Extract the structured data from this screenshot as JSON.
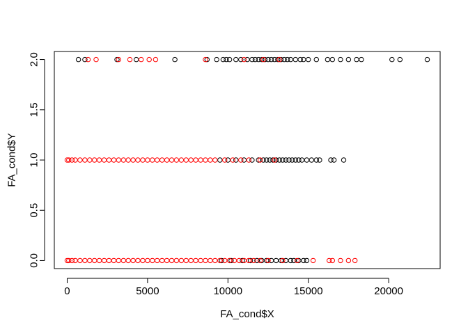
{
  "chart_data": {
    "type": "scatter",
    "title": "",
    "xlabel": "FA_cond$X",
    "ylabel": "FA_cond$Y",
    "xlim": [
      -800,
      23200
    ],
    "ylim": [
      -0.08,
      2.08
    ],
    "x_ticks": [
      0,
      5000,
      10000,
      15000,
      20000
    ],
    "x_tick_labels": [
      "0",
      "5000",
      "10000",
      "15000",
      "20000"
    ],
    "y_ticks": [
      0.0,
      0.5,
      1.0,
      1.5,
      2.0
    ],
    "y_tick_labels": [
      "0.0",
      "0.5",
      "1.0",
      "1.5",
      "2.0"
    ],
    "grid": false,
    "legend": "none",
    "marker": "open-circle",
    "colors": {
      "black_points": "#000000",
      "red_points": "#ff0000",
      "axes": "#000000"
    },
    "series": [
      {
        "color": "#000000",
        "points": [
          {
            "x": 700,
            "y": 2
          },
          {
            "x": 1100,
            "y": 2
          },
          {
            "x": 3100,
            "y": 2
          },
          {
            "x": 4300,
            "y": 2
          },
          {
            "x": 6700,
            "y": 2
          },
          {
            "x": 8700,
            "y": 2
          },
          {
            "x": 9300,
            "y": 2
          },
          {
            "x": 9700,
            "y": 2
          },
          {
            "x": 9900,
            "y": 2
          },
          {
            "x": 10100,
            "y": 2
          },
          {
            "x": 10500,
            "y": 2
          },
          {
            "x": 10800,
            "y": 2
          },
          {
            "x": 11200,
            "y": 2
          },
          {
            "x": 11500,
            "y": 2
          },
          {
            "x": 11700,
            "y": 2
          },
          {
            "x": 11900,
            "y": 2
          },
          {
            "x": 12100,
            "y": 2
          },
          {
            "x": 12300,
            "y": 2
          },
          {
            "x": 12500,
            "y": 2
          },
          {
            "x": 12700,
            "y": 2
          },
          {
            "x": 12900,
            "y": 2
          },
          {
            "x": 13100,
            "y": 2
          },
          {
            "x": 13300,
            "y": 2
          },
          {
            "x": 13500,
            "y": 2
          },
          {
            "x": 13700,
            "y": 2
          },
          {
            "x": 13900,
            "y": 2
          },
          {
            "x": 14200,
            "y": 2
          },
          {
            "x": 14500,
            "y": 2
          },
          {
            "x": 14700,
            "y": 2
          },
          {
            "x": 15000,
            "y": 2
          },
          {
            "x": 15500,
            "y": 2
          },
          {
            "x": 16200,
            "y": 2
          },
          {
            "x": 16500,
            "y": 2
          },
          {
            "x": 17000,
            "y": 2
          },
          {
            "x": 17500,
            "y": 2
          },
          {
            "x": 18000,
            "y": 2
          },
          {
            "x": 18300,
            "y": 2
          },
          {
            "x": 20200,
            "y": 2
          },
          {
            "x": 20700,
            "y": 2
          },
          {
            "x": 22400,
            "y": 2
          },
          {
            "x": 9500,
            "y": 1
          },
          {
            "x": 10000,
            "y": 1
          },
          {
            "x": 10500,
            "y": 1
          },
          {
            "x": 11000,
            "y": 1
          },
          {
            "x": 11500,
            "y": 1
          },
          {
            "x": 11900,
            "y": 1
          },
          {
            "x": 12200,
            "y": 1
          },
          {
            "x": 12400,
            "y": 1
          },
          {
            "x": 12600,
            "y": 1
          },
          {
            "x": 12800,
            "y": 1
          },
          {
            "x": 13000,
            "y": 1
          },
          {
            "x": 13200,
            "y": 1
          },
          {
            "x": 13400,
            "y": 1
          },
          {
            "x": 13600,
            "y": 1
          },
          {
            "x": 13800,
            "y": 1
          },
          {
            "x": 14000,
            "y": 1
          },
          {
            "x": 14200,
            "y": 1
          },
          {
            "x": 14400,
            "y": 1
          },
          {
            "x": 14600,
            "y": 1
          },
          {
            "x": 14900,
            "y": 1
          },
          {
            "x": 15200,
            "y": 1
          },
          {
            "x": 15500,
            "y": 1
          },
          {
            "x": 15700,
            "y": 1
          },
          {
            "x": 16400,
            "y": 1
          },
          {
            "x": 16600,
            "y": 1
          },
          {
            "x": 17200,
            "y": 1
          },
          {
            "x": 9600,
            "y": 0
          },
          {
            "x": 10200,
            "y": 0
          },
          {
            "x": 10900,
            "y": 0
          },
          {
            "x": 11400,
            "y": 0
          },
          {
            "x": 11800,
            "y": 0
          },
          {
            "x": 12100,
            "y": 0
          },
          {
            "x": 12400,
            "y": 0
          },
          {
            "x": 12700,
            "y": 0
          },
          {
            "x": 13000,
            "y": 0
          },
          {
            "x": 13300,
            "y": 0
          },
          {
            "x": 13600,
            "y": 0
          },
          {
            "x": 13900,
            "y": 0
          },
          {
            "x": 14100,
            "y": 0
          },
          {
            "x": 14400,
            "y": 0
          },
          {
            "x": 14700,
            "y": 0
          },
          {
            "x": 14900,
            "y": 0
          }
        ]
      },
      {
        "color": "#ff0000",
        "points": [
          {
            "x": 1300,
            "y": 2
          },
          {
            "x": 1800,
            "y": 2
          },
          {
            "x": 3200,
            "y": 2
          },
          {
            "x": 3900,
            "y": 2
          },
          {
            "x": 4600,
            "y": 2
          },
          {
            "x": 5100,
            "y": 2
          },
          {
            "x": 5500,
            "y": 2
          },
          {
            "x": 8600,
            "y": 2
          },
          {
            "x": 11000,
            "y": 2
          },
          {
            "x": 12200,
            "y": 2
          },
          {
            "x": 13200,
            "y": 2
          },
          {
            "x": 0,
            "y": 1
          },
          {
            "x": 100,
            "y": 1
          },
          {
            "x": 300,
            "y": 1
          },
          {
            "x": 500,
            "y": 1
          },
          {
            "x": 800,
            "y": 1
          },
          {
            "x": 1100,
            "y": 1
          },
          {
            "x": 1400,
            "y": 1
          },
          {
            "x": 1700,
            "y": 1
          },
          {
            "x": 2000,
            "y": 1
          },
          {
            "x": 2300,
            "y": 1
          },
          {
            "x": 2600,
            "y": 1
          },
          {
            "x": 2900,
            "y": 1
          },
          {
            "x": 3200,
            "y": 1
          },
          {
            "x": 3500,
            "y": 1
          },
          {
            "x": 3800,
            "y": 1
          },
          {
            "x": 4100,
            "y": 1
          },
          {
            "x": 4400,
            "y": 1
          },
          {
            "x": 4700,
            "y": 1
          },
          {
            "x": 5000,
            "y": 1
          },
          {
            "x": 5300,
            "y": 1
          },
          {
            "x": 5600,
            "y": 1
          },
          {
            "x": 5900,
            "y": 1
          },
          {
            "x": 6200,
            "y": 1
          },
          {
            "x": 6500,
            "y": 1
          },
          {
            "x": 6800,
            "y": 1
          },
          {
            "x": 7100,
            "y": 1
          },
          {
            "x": 7400,
            "y": 1
          },
          {
            "x": 7700,
            "y": 1
          },
          {
            "x": 8000,
            "y": 1
          },
          {
            "x": 8300,
            "y": 1
          },
          {
            "x": 8600,
            "y": 1
          },
          {
            "x": 8900,
            "y": 1
          },
          {
            "x": 9200,
            "y": 1
          },
          {
            "x": 9800,
            "y": 1
          },
          {
            "x": 10300,
            "y": 1
          },
          {
            "x": 10800,
            "y": 1
          },
          {
            "x": 11300,
            "y": 1
          },
          {
            "x": 12000,
            "y": 1
          },
          {
            "x": 12900,
            "y": 1
          },
          {
            "x": 0,
            "y": 0
          },
          {
            "x": 100,
            "y": 0
          },
          {
            "x": 300,
            "y": 0
          },
          {
            "x": 500,
            "y": 0
          },
          {
            "x": 800,
            "y": 0
          },
          {
            "x": 1100,
            "y": 0
          },
          {
            "x": 1400,
            "y": 0
          },
          {
            "x": 1700,
            "y": 0
          },
          {
            "x": 2000,
            "y": 0
          },
          {
            "x": 2300,
            "y": 0
          },
          {
            "x": 2600,
            "y": 0
          },
          {
            "x": 2900,
            "y": 0
          },
          {
            "x": 3200,
            "y": 0
          },
          {
            "x": 3500,
            "y": 0
          },
          {
            "x": 3800,
            "y": 0
          },
          {
            "x": 4100,
            "y": 0
          },
          {
            "x": 4400,
            "y": 0
          },
          {
            "x": 4700,
            "y": 0
          },
          {
            "x": 5000,
            "y": 0
          },
          {
            "x": 5300,
            "y": 0
          },
          {
            "x": 5600,
            "y": 0
          },
          {
            "x": 5900,
            "y": 0
          },
          {
            "x": 6200,
            "y": 0
          },
          {
            "x": 6500,
            "y": 0
          },
          {
            "x": 6800,
            "y": 0
          },
          {
            "x": 7100,
            "y": 0
          },
          {
            "x": 7400,
            "y": 0
          },
          {
            "x": 7700,
            "y": 0
          },
          {
            "x": 8000,
            "y": 0
          },
          {
            "x": 8300,
            "y": 0
          },
          {
            "x": 8600,
            "y": 0
          },
          {
            "x": 8900,
            "y": 0
          },
          {
            "x": 9200,
            "y": 0
          },
          {
            "x": 9500,
            "y": 0
          },
          {
            "x": 9800,
            "y": 0
          },
          {
            "x": 10100,
            "y": 0
          },
          {
            "x": 10400,
            "y": 0
          },
          {
            "x": 10700,
            "y": 0
          },
          {
            "x": 11000,
            "y": 0
          },
          {
            "x": 11300,
            "y": 0
          },
          {
            "x": 11600,
            "y": 0
          },
          {
            "x": 12000,
            "y": 0
          },
          {
            "x": 12500,
            "y": 0
          },
          {
            "x": 13400,
            "y": 0
          },
          {
            "x": 14300,
            "y": 0
          },
          {
            "x": 15300,
            "y": 0
          },
          {
            "x": 16300,
            "y": 0
          },
          {
            "x": 16500,
            "y": 0
          },
          {
            "x": 17000,
            "y": 0
          },
          {
            "x": 17500,
            "y": 0
          },
          {
            "x": 17900,
            "y": 0
          }
        ]
      }
    ]
  }
}
